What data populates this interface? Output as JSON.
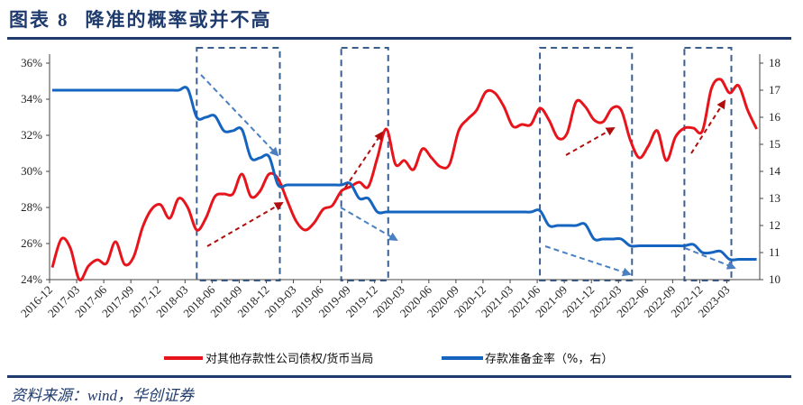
{
  "header": {
    "label": "图表",
    "number": "8",
    "title": "降准的概率或并不高"
  },
  "source": "资料来源：wind，华创证券",
  "chart_data": {
    "type": "line",
    "title": "降准的概率或并不高",
    "start_month": "2016-12",
    "x_tick_labels": [
      "2016-12",
      "2017-03",
      "2017-06",
      "2017-09",
      "2017-12",
      "2018-03",
      "2018-06",
      "2018-09",
      "2018-12",
      "2019-03",
      "2019-06",
      "2019-09",
      "2019-12",
      "2020-03",
      "2020-06",
      "2020-09",
      "2020-12",
      "2021-03",
      "2021-06",
      "2021-09",
      "2021-12",
      "2022-03",
      "2022-06",
      "2022-09",
      "2022-12",
      "2023-03"
    ],
    "y_left": {
      "ticks": [
        "24%",
        "26%",
        "28%",
        "30%",
        "32%",
        "34%",
        "36%"
      ],
      "range": [
        24,
        36
      ]
    },
    "y_right": {
      "ticks": [
        "10",
        "11",
        "12",
        "13",
        "14",
        "15",
        "16",
        "17",
        "18"
      ],
      "range": [
        10,
        18
      ]
    },
    "series": [
      {
        "name": "对其他存款性公司债权/货币当局",
        "axis": "left",
        "color": "#e8141c",
        "values": [
          24.67,
          26.25,
          25.75,
          24.0,
          24.75,
          25.1,
          24.9,
          26.1,
          24.85,
          25.25,
          26.9,
          27.9,
          28.15,
          27.4,
          28.5,
          28.0,
          26.75,
          27.4,
          28.6,
          28.75,
          28.75,
          29.85,
          28.6,
          28.9,
          29.85,
          29.6,
          28.4,
          27.25,
          26.75,
          27.15,
          27.9,
          28.1,
          28.9,
          29.15,
          29.4,
          29.15,
          30.75,
          32.35,
          30.4,
          30.6,
          30.1,
          31.25,
          30.75,
          30.25,
          30.4,
          32.25,
          32.9,
          33.4,
          34.4,
          34.35,
          33.6,
          32.5,
          32.6,
          32.6,
          33.5,
          32.85,
          31.85,
          32.1,
          33.85,
          33.6,
          32.85,
          32.75,
          33.5,
          33.4,
          31.75,
          30.75,
          31.4,
          32.25,
          30.6,
          31.9,
          32.4,
          32.4,
          32.25,
          34.6,
          35.1,
          34.35,
          34.75,
          33.4,
          32.35
        ]
      },
      {
        "name": "存款准备金率（%，右）",
        "axis": "right",
        "color": "#1565c0",
        "values": [
          17,
          17,
          17,
          17,
          17,
          17,
          17,
          17,
          17,
          17,
          17,
          17,
          17,
          17,
          17,
          17.05,
          16.0,
          16.0,
          16.05,
          15.5,
          15.5,
          15.55,
          14.5,
          14.5,
          14.55,
          13.5,
          13.5,
          13.5,
          13.5,
          13.5,
          13.5,
          13.5,
          13.5,
          13.55,
          13.0,
          13.0,
          12.5,
          12.5,
          12.5,
          12.5,
          12.5,
          12.5,
          12.5,
          12.5,
          12.5,
          12.5,
          12.5,
          12.5,
          12.5,
          12.5,
          12.5,
          12.5,
          12.5,
          12.5,
          12.55,
          12.0,
          12.0,
          12.0,
          12.0,
          12.05,
          11.5,
          11.5,
          11.5,
          11.5,
          11.25,
          11.25,
          11.25,
          11.25,
          11.25,
          11.25,
          11.25,
          11.3,
          11.0,
          11.0,
          11.05,
          10.75,
          10.75,
          10.75,
          10.75
        ]
      }
    ],
    "highlight_periods": [
      [
        "2018-04",
        "2019-01"
      ],
      [
        "2019-08",
        "2020-01"
      ],
      [
        "2021-06",
        "2022-04"
      ],
      [
        "2022-10",
        "2023-03"
      ]
    ],
    "legend_placement": "bottom",
    "grid": false
  }
}
